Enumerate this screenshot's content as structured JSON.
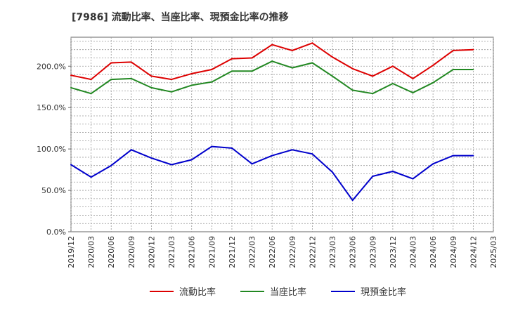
{
  "chart_data": {
    "type": "line",
    "title": "[7986]  流動比率、当座比率、現預金比率の推移",
    "xlabel": "",
    "ylabel": "",
    "ylim": [
      0,
      235
    ],
    "y_ticks": [
      0,
      50,
      100,
      150,
      200
    ],
    "y_tick_labels": [
      "0.0%",
      "50.0%",
      "100.0%",
      "150.0%",
      "200.0%"
    ],
    "x_tick_labels": [
      "2019/12",
      "2020/03",
      "2020/06",
      "2020/09",
      "2020/12",
      "2021/03",
      "2021/06",
      "2021/09",
      "2021/12",
      "2022/03",
      "2022/06",
      "2022/09",
      "2022/12",
      "2023/03",
      "2023/06",
      "2023/09",
      "2023/12",
      "2024/03",
      "2024/06",
      "2024/09",
      "2024/12",
      "2025/03"
    ],
    "categories": [
      "2019/12",
      "2020/03",
      "2020/06",
      "2020/09",
      "2020/12",
      "2021/03",
      "2021/06",
      "2021/09",
      "2021/12",
      "2022/03",
      "2022/06",
      "2022/09",
      "2022/12",
      "2023/03",
      "2023/06",
      "2023/09",
      "2023/12",
      "2024/03",
      "2024/06",
      "2024/09",
      "2024/12"
    ],
    "series": [
      {
        "name": "流動比率",
        "color": "#dd0000",
        "values": [
          189,
          184,
          204,
          205,
          188,
          184,
          191,
          196,
          209,
          210,
          226,
          219,
          228,
          211,
          197,
          188,
          200,
          185,
          201,
          219,
          220
        ]
      },
      {
        "name": "当座比率",
        "color": "#228822",
        "values": [
          174,
          167,
          184,
          185,
          174,
          169,
          177,
          181,
          194,
          194,
          206,
          198,
          204,
          188,
          171,
          167,
          179,
          168,
          180,
          196,
          196
        ]
      },
      {
        "name": "現預金比率",
        "color": "#0000cc",
        "values": [
          81,
          66,
          80,
          99,
          89,
          81,
          87,
          103,
          101,
          82,
          92,
          99,
          94,
          72,
          38,
          67,
          73,
          64,
          82,
          92,
          92
        ]
      }
    ],
    "grid": true,
    "legend_position": "bottom"
  }
}
